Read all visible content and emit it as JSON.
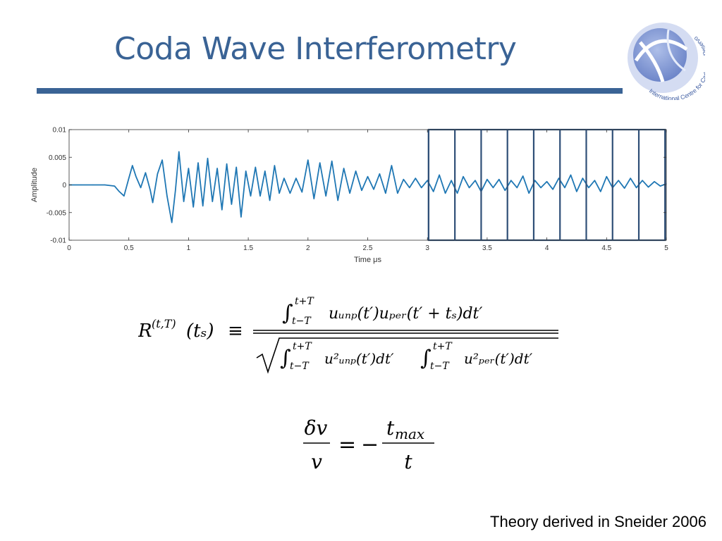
{
  "slide": {
    "title": "Coda Wave Interferometry",
    "credit": "Theory derived in Sneider 2006"
  },
  "logo": {
    "text": "International Centre for Carbonate Reservoirs",
    "colors": {
      "outer": "#c7d2ee",
      "inner": "#7e95d3",
      "arc": "#ffffff"
    }
  },
  "colors": {
    "title": "#3a6395",
    "trace": "#1f77b4",
    "windows": "#2f4f77",
    "axis": "#333333"
  },
  "chart_data": {
    "type": "line",
    "title": "",
    "xlabel": "Time μs",
    "ylabel": "Amplitude",
    "xlim": [
      0,
      5
    ],
    "ylim": [
      -0.01,
      0.01
    ],
    "x_ticks": [
      0,
      0.5,
      1,
      1.5,
      2,
      2.5,
      3,
      3.5,
      4,
      4.5,
      5
    ],
    "x_tick_labels": [
      "0",
      "0.5",
      "1",
      "1.5",
      "2",
      "2.5",
      "3",
      "3.5",
      "4",
      "4.5",
      "5"
    ],
    "y_ticks": [
      0.01,
      0.005,
      0,
      -0.005,
      -0.01
    ],
    "y_tick_labels": [
      "0.01",
      "0.005",
      "0",
      "-0.005",
      "-0.01"
    ],
    "series": [
      {
        "name": "waveform",
        "x": [
          0,
          0.1,
          0.2,
          0.3,
          0.38,
          0.42,
          0.46,
          0.5,
          0.53,
          0.56,
          0.6,
          0.64,
          0.68,
          0.7,
          0.74,
          0.78,
          0.82,
          0.86,
          0.89,
          0.92,
          0.96,
          1.0,
          1.04,
          1.08,
          1.12,
          1.16,
          1.2,
          1.24,
          1.28,
          1.32,
          1.36,
          1.4,
          1.44,
          1.48,
          1.52,
          1.56,
          1.6,
          1.64,
          1.68,
          1.72,
          1.76,
          1.8,
          1.85,
          1.9,
          1.95,
          2.0,
          2.05,
          2.1,
          2.15,
          2.2,
          2.25,
          2.3,
          2.35,
          2.4,
          2.45,
          2.5,
          2.55,
          2.6,
          2.65,
          2.7,
          2.75,
          2.8,
          2.85,
          2.9,
          2.95,
          3.0,
          3.05,
          3.1,
          3.15,
          3.2,
          3.25,
          3.3,
          3.35,
          3.4,
          3.45,
          3.5,
          3.55,
          3.6,
          3.65,
          3.7,
          3.75,
          3.8,
          3.85,
          3.9,
          3.95,
          4.0,
          4.05,
          4.1,
          4.15,
          4.2,
          4.25,
          4.3,
          4.35,
          4.4,
          4.45,
          4.5,
          4.55,
          4.6,
          4.65,
          4.7,
          4.75,
          4.8,
          4.85,
          4.9,
          4.95,
          5.0
        ],
        "y": [
          0,
          0,
          0,
          0,
          -0.0002,
          -0.0012,
          -0.002,
          0.0012,
          0.0035,
          0.0015,
          -0.0005,
          0.0022,
          -0.001,
          -0.0032,
          0.002,
          0.0045,
          -0.002,
          -0.0068,
          -0.001,
          0.006,
          -0.003,
          0.003,
          -0.004,
          0.004,
          -0.0038,
          0.0048,
          -0.003,
          0.003,
          -0.0045,
          0.0038,
          -0.0035,
          0.0032,
          -0.0058,
          0.0025,
          -0.002,
          0.0032,
          -0.002,
          0.0025,
          -0.0028,
          0.0035,
          -0.0015,
          0.0012,
          -0.0015,
          0.0012,
          -0.0013,
          0.0045,
          -0.0025,
          0.004,
          -0.002,
          0.0043,
          -0.0028,
          0.003,
          -0.0015,
          0.0025,
          -0.001,
          0.0015,
          -0.0008,
          0.002,
          -0.0015,
          0.0035,
          -0.0015,
          0.001,
          -0.0005,
          0.0012,
          -0.0005,
          0.0008,
          -0.0012,
          0.0018,
          -0.0015,
          0.0008,
          -0.0015,
          0.0015,
          -0.0005,
          0.0008,
          -0.0012,
          0.001,
          -0.0005,
          0.001,
          -0.001,
          0.0008,
          -0.0005,
          0.0016,
          -0.0015,
          0.0008,
          -0.0005,
          0.0006,
          -0.0008,
          0.0012,
          -0.0005,
          0.0018,
          -0.0012,
          0.0012,
          -0.0005,
          0.0008,
          -0.0012,
          0.0015,
          -0.0005,
          0.0008,
          -0.0006,
          0.0012,
          -0.0005,
          0.0008,
          -0.0004,
          0.0006,
          -0.0002,
          0.0002
        ]
      }
    ],
    "windows": {
      "start": 3.01,
      "end": 4.99,
      "boundaries": [
        3.01,
        3.23,
        3.45,
        3.67,
        3.89,
        4.11,
        4.33,
        4.55,
        4.77,
        4.99
      ]
    }
  },
  "equations": {
    "correlation": {
      "lhs_R": "R",
      "lhs_sup": "(t,T)",
      "lhs_arg": "(tₛ)",
      "equiv": "≡",
      "int_upper": "t+T",
      "int_lower": "t−T",
      "numerator_body": "uᵤₙₚ(t′)uₚₑᵣ(t′ + tₛ)dt′",
      "den_body_1": "u²ᵤₙₚ(t′)dt′",
      "den_body_2": "u²ₚₑᵣ(t′)dt′"
    },
    "velocity": {
      "lhs_num": "δv",
      "lhs_den": "v",
      "equals": "=",
      "minus": "−",
      "rhs_num": "t",
      "rhs_num_sub": "max",
      "rhs_den": "t"
    }
  }
}
